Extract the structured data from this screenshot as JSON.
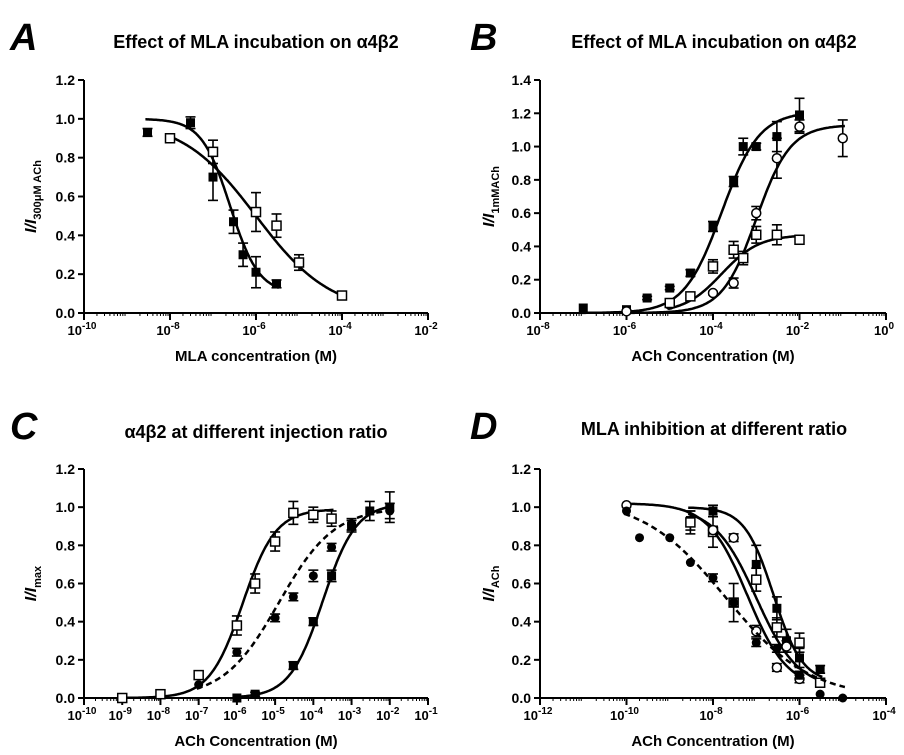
{
  "chart_data": [
    {
      "type": "scatter",
      "panel_label": "A",
      "title": "Effect of MLA incubation on  α4β2",
      "xlabel": "MLA concentration (M)",
      "ylabel": {
        "main": "I/I",
        "sub": "300μM ACh"
      },
      "x_scale": "log",
      "xlim": [
        1e-10,
        0.01
      ],
      "ylim": [
        0,
        1.2
      ],
      "x_ticks": [
        1e-10,
        1e-08,
        1e-06,
        0.0001,
        0.01
      ],
      "x_tick_labels": [
        [
          "10",
          "-10"
        ],
        [
          "10",
          "-8"
        ],
        [
          "10",
          "-6"
        ],
        [
          "10",
          "-4"
        ],
        [
          "10",
          "-2"
        ]
      ],
      "y_ticks": [
        0,
        0.2,
        0.4,
        0.6,
        0.8,
        1.0,
        1.2
      ],
      "y_tick_labels": [
        "0.0",
        "0.2",
        "0.4",
        "0.6",
        "0.8",
        "1.0",
        "1.2"
      ],
      "series": [
        {
          "marker": "filled-square",
          "curve": "solid",
          "x": [
            3e-09,
            3e-08,
            1e-07,
            3e-07,
            5e-07,
            1e-06,
            3e-06
          ],
          "y": [
            0.93,
            0.98,
            0.7,
            0.47,
            0.3,
            0.21,
            0.15
          ],
          "err": [
            0.02,
            0.03,
            0.12,
            0.06,
            0.06,
            0.08,
            0.02
          ],
          "fit": {
            "bottom": 0.1,
            "top": 1.0,
            "logEC50": -6.6,
            "hill": -1.3
          }
        },
        {
          "marker": "open-square",
          "curve": "solid",
          "x": [
            1e-08,
            1e-07,
            1e-06,
            3e-06,
            1e-05,
            0.0001
          ],
          "y": [
            0.9,
            0.83,
            0.52,
            0.45,
            0.26,
            0.09
          ],
          "err": [
            0.02,
            0.06,
            0.1,
            0.06,
            0.04,
            0.01
          ],
          "fit": {
            "bottom": 0.0,
            "top": 1.0,
            "logEC50": -6.0,
            "hill": -0.5
          }
        }
      ]
    },
    {
      "type": "scatter",
      "panel_label": "B",
      "title": "Effect of MLA incubation on  α4β2",
      "xlabel": "ACh Concentration (M)",
      "ylabel": {
        "main": "I/I",
        "sub": "1mMACh"
      },
      "x_scale": "log",
      "xlim": [
        1e-08,
        1
      ],
      "ylim": [
        0,
        1.4
      ],
      "x_ticks": [
        1e-08,
        1e-06,
        0.0001,
        0.01,
        1
      ],
      "x_tick_labels": [
        [
          "10",
          "-8"
        ],
        [
          "10",
          "-6"
        ],
        [
          "10",
          "-4"
        ],
        [
          "10",
          "-2"
        ],
        [
          "10",
          "0"
        ]
      ],
      "y_ticks": [
        0,
        0.2,
        0.4,
        0.6,
        0.8,
        1.0,
        1.2,
        1.4
      ],
      "y_tick_labels": [
        "0.0",
        "0.2",
        "0.4",
        "0.6",
        "0.8",
        "1.0",
        "1.2",
        "1.4"
      ],
      "series": [
        {
          "marker": "filled-square",
          "curve": "solid",
          "x": [
            1e-07,
            1e-06,
            3e-06,
            1e-05,
            3e-05,
            0.0001,
            0.0003,
            0.0005,
            0.001,
            0.003,
            0.01
          ],
          "y": [
            0.03,
            0.02,
            0.09,
            0.15,
            0.24,
            0.52,
            0.79,
            1.0,
            1.0,
            1.06,
            1.19
          ],
          "err": [
            0,
            0,
            0.01,
            0.01,
            0.02,
            0.03,
            0.03,
            0.05,
            0.02,
            0.09,
            0.1
          ],
          "fit": {
            "bottom": 0.0,
            "top": 1.21,
            "logEC50": -3.8,
            "hill": 1.0
          }
        },
        {
          "marker": "open-circle",
          "curve": "solid",
          "x": [
            1e-06,
            1e-05,
            0.0001,
            0.0003,
            0.001,
            0.003,
            0.01,
            0.1
          ],
          "y": [
            0.01,
            0.05,
            0.12,
            0.18,
            0.6,
            0.93,
            1.12,
            1.05
          ],
          "err": [
            0,
            0.01,
            0.01,
            0.03,
            0.04,
            0.12,
            0.04,
            0.11
          ],
          "fit": {
            "bottom": 0.0,
            "top": 1.13,
            "logEC50": -3.0,
            "hill": 1.1
          }
        },
        {
          "marker": "open-square",
          "curve": "solid",
          "x": [
            1e-05,
            3e-05,
            0.0001,
            0.0003,
            0.0005,
            0.001,
            0.003,
            0.01
          ],
          "y": [
            0.06,
            0.1,
            0.28,
            0.38,
            0.33,
            0.47,
            0.47,
            0.44
          ],
          "err": [
            0.01,
            0.01,
            0.04,
            0.05,
            0.04,
            0.05,
            0.06,
            0.02
          ],
          "fit": {
            "bottom": 0.0,
            "top": 0.47,
            "logEC50": -3.8,
            "hill": 1.0
          }
        }
      ]
    },
    {
      "type": "scatter",
      "panel_label": "C",
      "title": "α4β2 at different injection ratio",
      "xlabel": "ACh Concentration (M)",
      "ylabel": {
        "main": "I/I",
        "sub": "max"
      },
      "x_scale": "log",
      "xlim": [
        1e-10,
        0.1
      ],
      "ylim": [
        0,
        1.2
      ],
      "x_ticks": [
        1e-10,
        1e-09,
        1e-08,
        1e-07,
        1e-06,
        1e-05,
        0.0001,
        0.001,
        0.01,
        0.1
      ],
      "x_tick_labels": [
        [
          "10",
          "-10"
        ],
        [
          "10",
          "-9"
        ],
        [
          "10",
          "-8"
        ],
        [
          "10",
          "-7"
        ],
        [
          "10",
          "-6"
        ],
        [
          "10",
          "-5"
        ],
        [
          "10",
          "-4"
        ],
        [
          "10",
          "-3"
        ],
        [
          "10",
          "-2"
        ],
        [
          "10",
          "-1"
        ]
      ],
      "y_ticks": [
        0,
        0.2,
        0.4,
        0.6,
        0.8,
        1.0,
        1.2
      ],
      "y_tick_labels": [
        "0.0",
        "0.2",
        "0.4",
        "0.6",
        "0.8",
        "1.0",
        "1.2"
      ],
      "series": [
        {
          "marker": "open-square",
          "curve": "solid",
          "x": [
            1e-09,
            1e-08,
            1e-07,
            1e-06,
            3e-06,
            1e-05,
            3e-05,
            0.0001,
            0.0003
          ],
          "y": [
            0.0,
            0.02,
            0.12,
            0.38,
            0.6,
            0.82,
            0.97,
            0.96,
            0.94
          ],
          "err": [
            0,
            0,
            0.02,
            0.05,
            0.05,
            0.05,
            0.06,
            0.04,
            0.04
          ],
          "fit": {
            "bottom": 0.0,
            "top": 0.99,
            "logEC50": -5.85,
            "hill": 1.0
          }
        },
        {
          "marker": "filled-circle",
          "curve": "dashed",
          "x": [
            1e-07,
            1e-06,
            1e-05,
            3e-05,
            0.0001,
            0.0003,
            0.001,
            0.01
          ],
          "y": [
            0.07,
            0.24,
            0.42,
            0.53,
            0.64,
            0.79,
            0.91,
            0.98
          ],
          "err": [
            0,
            0.02,
            0.02,
            0.02,
            0.03,
            0.02,
            0.03,
            0.04
          ],
          "fit": {
            "bottom": 0.0,
            "top": 1.0,
            "logEC50": -4.9,
            "hill": 0.6
          }
        },
        {
          "marker": "filled-square",
          "curve": "solid",
          "x": [
            1e-06,
            3e-06,
            3e-05,
            0.0001,
            0.0003,
            0.001,
            0.003,
            0.01
          ],
          "y": [
            0.0,
            0.02,
            0.17,
            0.4,
            0.64,
            0.9,
            0.98,
            1.0
          ],
          "err": [
            0,
            0.01,
            0.02,
            0.02,
            0.03,
            0.03,
            0.05,
            0.08
          ],
          "fit": {
            "bottom": 0.0,
            "top": 1.02,
            "logEC50": -3.75,
            "hill": 1.0
          }
        }
      ]
    },
    {
      "type": "scatter",
      "panel_label": "D",
      "title": "MLA inhibition at different ratio",
      "xlabel": "ACh Concentration (M)",
      "ylabel": {
        "main": "I/I",
        "sub": "ACh"
      },
      "x_scale": "log",
      "xlim": [
        1e-12,
        0.0001
      ],
      "ylim": [
        0,
        1.2
      ],
      "x_ticks": [
        1e-12,
        1e-10,
        1e-08,
        1e-06,
        0.0001
      ],
      "x_tick_labels": [
        [
          "10",
          "-12"
        ],
        [
          "10",
          "-10"
        ],
        [
          "10",
          "-8"
        ],
        [
          "10",
          "-6"
        ],
        [
          "10",
          "-4"
        ]
      ],
      "y_ticks": [
        0,
        0.2,
        0.4,
        0.6,
        0.8,
        1.0,
        1.2
      ],
      "y_tick_labels": [
        "0.0",
        "0.2",
        "0.4",
        "0.6",
        "0.8",
        "1.0",
        "1.2"
      ],
      "series": [
        {
          "marker": "filled-square",
          "curve": "solid",
          "x": [
            3e-09,
            1e-08,
            1e-07,
            3e-07,
            5e-07,
            1e-06,
            3e-06
          ],
          "y": [
            0.93,
            0.98,
            0.7,
            0.47,
            0.3,
            0.21,
            0.15
          ],
          "err": [
            0.05,
            0.03,
            0.1,
            0.06,
            0.06,
            0.05,
            0.02
          ],
          "fit": {
            "bottom": 0.08,
            "top": 1.0,
            "logEC50": -6.6,
            "hill": -1.3
          }
        },
        {
          "marker": "open-square",
          "curve": "solid",
          "x": [
            3e-09,
            1e-08,
            3e-08,
            1e-07,
            3e-07,
            1e-06,
            3e-06
          ],
          "y": [
            0.92,
            0.87,
            0.5,
            0.62,
            0.37,
            0.29,
            0.08
          ],
          "err": [
            0.06,
            0.08,
            0.1,
            0.06,
            0.05,
            0.05,
            0.02
          ],
          "fit": {
            "bottom": 0.05,
            "top": 1.0,
            "logEC50": -7.0,
            "hill": -0.9
          }
        },
        {
          "marker": "open-circle",
          "curve": "solid",
          "x": [
            1e-10,
            1e-08,
            3e-08,
            1e-07,
            3e-07,
            5e-07,
            1e-06
          ],
          "y": [
            1.01,
            0.88,
            0.84,
            0.35,
            0.16,
            0.27,
            0.1
          ],
          "err": [
            0,
            0.02,
            0.02,
            0.03,
            0.02,
            0.03,
            0.02
          ],
          "fit": {
            "bottom": 0.05,
            "top": 1.02,
            "logEC50": -7.2,
            "hill": -0.95
          }
        },
        {
          "marker": "filled-circle",
          "curve": "dashed",
          "x": [
            1e-10,
            2e-10,
            1e-09,
            3e-09,
            1e-08,
            3e-08,
            1e-07,
            3e-07,
            1e-06,
            3e-06,
            1e-05
          ],
          "y": [
            0.98,
            0.84,
            0.84,
            0.71,
            0.63,
            0.5,
            0.29,
            0.26,
            0.12,
            0.02,
            0.0
          ],
          "err": [
            0,
            0,
            0,
            0,
            0.02,
            0.02,
            0.02,
            0.02,
            0.02,
            0,
            0
          ],
          "fit": {
            "bottom": 0.0,
            "top": 1.05,
            "logEC50": -7.7,
            "hill": -0.45
          }
        }
      ]
    }
  ]
}
